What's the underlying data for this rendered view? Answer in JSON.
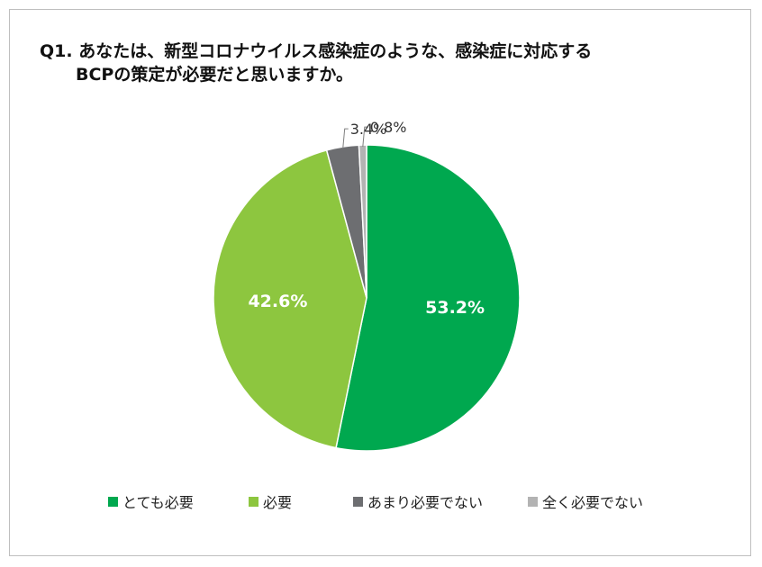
{
  "title": {
    "line1": "Q1. あなたは、新型コロナウイルス感染症のような、感染症に対応する",
    "line2": "BCPの策定が必要だと思いますか。"
  },
  "chart_data": {
    "type": "pie",
    "title": "Q1. あなたは、新型コロナウイルス感染症のような、感染症に対応するBCPの策定が必要だと思いますか。",
    "slices": [
      {
        "label": "とても必要",
        "value": 53.2,
        "display": "53.2%",
        "color": "#00a84f"
      },
      {
        "label": "必要",
        "value": 42.6,
        "display": "42.6%",
        "color": "#8dc63f"
      },
      {
        "label": "あまり必要でない",
        "value": 3.4,
        "display": "3.4%",
        "color": "#6d6e71"
      },
      {
        "label": "全く必要でない",
        "value": 0.8,
        "display": "0.8%",
        "color": "#b3b3b3"
      }
    ],
    "start": "12 o'clock",
    "direction": "clockwise",
    "legend_position": "bottom"
  }
}
